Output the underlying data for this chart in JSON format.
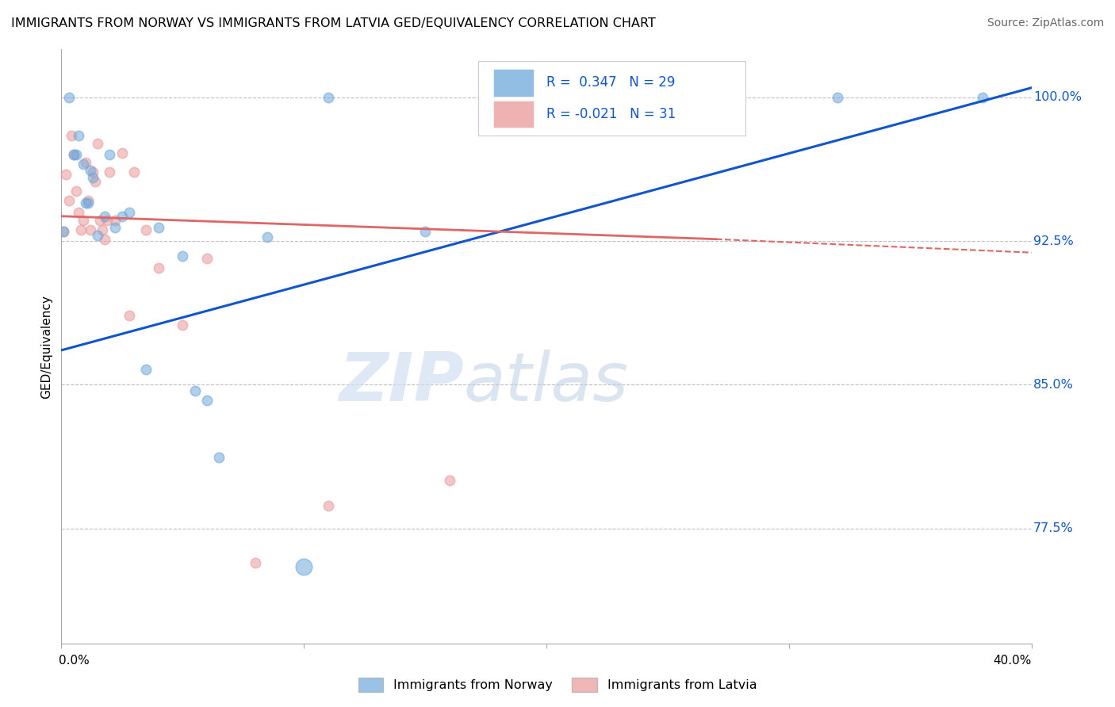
{
  "title": "IMMIGRANTS FROM NORWAY VS IMMIGRANTS FROM LATVIA GED/EQUIVALENCY CORRELATION CHART",
  "source": "Source: ZipAtlas.com",
  "ylabel": "GED/Equivalency",
  "ylabel_right_labels": [
    "100.0%",
    "92.5%",
    "85.0%",
    "77.5%"
  ],
  "ylabel_right_values": [
    1.0,
    0.925,
    0.85,
    0.775
  ],
  "xlim": [
    0.0,
    0.4
  ],
  "ylim": [
    0.715,
    1.025
  ],
  "norway_color": "#6fa8dc",
  "latvia_color": "#ea9999",
  "norway_line_color": "#1155cc",
  "latvia_line_color": "#cc4125",
  "latvia_line_solid_color": "#e06666",
  "latvia_line_dash_color": "#e06666",
  "watermark_zip": "ZIP",
  "watermark_atlas": "atlas",
  "legend_label_norway": "Immigrants from Norway",
  "legend_label_latvia": "Immigrants from Latvia",
  "norway_points_x": [
    0.001,
    0.003,
    0.005,
    0.006,
    0.007,
    0.009,
    0.01,
    0.011,
    0.012,
    0.013,
    0.015,
    0.018,
    0.02,
    0.022,
    0.025,
    0.028,
    0.035,
    0.04,
    0.05,
    0.055,
    0.06,
    0.065,
    0.085,
    0.1,
    0.11,
    0.15,
    0.32,
    0.38
  ],
  "norway_points_y": [
    0.93,
    1.0,
    0.97,
    0.97,
    0.98,
    0.965,
    0.945,
    0.945,
    0.962,
    0.958,
    0.928,
    0.938,
    0.97,
    0.932,
    0.938,
    0.94,
    0.858,
    0.932,
    0.917,
    0.847,
    0.842,
    0.812,
    0.927,
    0.755,
    1.0,
    0.93,
    1.0,
    1.0
  ],
  "norway_marker_sizes": [
    80,
    80,
    80,
    80,
    80,
    80,
    80,
    80,
    80,
    80,
    80,
    80,
    80,
    80,
    80,
    80,
    80,
    80,
    80,
    80,
    80,
    80,
    80,
    220,
    80,
    80,
    80,
    80
  ],
  "latvia_points_x": [
    0.001,
    0.002,
    0.003,
    0.004,
    0.005,
    0.006,
    0.007,
    0.008,
    0.009,
    0.01,
    0.011,
    0.012,
    0.013,
    0.014,
    0.015,
    0.016,
    0.017,
    0.018,
    0.019,
    0.02,
    0.022,
    0.025,
    0.028,
    0.03,
    0.035,
    0.04,
    0.05,
    0.06,
    0.08,
    0.11,
    0.16
  ],
  "latvia_points_y": [
    0.93,
    0.96,
    0.946,
    0.98,
    0.97,
    0.951,
    0.94,
    0.931,
    0.936,
    0.966,
    0.946,
    0.931,
    0.961,
    0.956,
    0.976,
    0.936,
    0.931,
    0.926,
    0.936,
    0.961,
    0.936,
    0.971,
    0.886,
    0.961,
    0.931,
    0.911,
    0.881,
    0.916,
    0.757,
    0.787,
    0.8
  ],
  "latvia_marker_sizes": [
    80,
    80,
    80,
    80,
    80,
    80,
    80,
    80,
    80,
    80,
    80,
    80,
    80,
    80,
    80,
    80,
    80,
    80,
    80,
    80,
    80,
    80,
    80,
    80,
    80,
    80,
    80,
    80,
    80,
    80,
    80
  ],
  "norway_line_x0": 0.0,
  "norway_line_y0": 0.868,
  "norway_line_x1": 0.4,
  "norway_line_y1": 1.005,
  "latvia_line_x0": 0.0,
  "latvia_line_y0": 0.938,
  "latvia_line_solid_x1": 0.27,
  "latvia_line_solid_y1": 0.926,
  "latvia_line_dash_x1": 0.4,
  "latvia_line_dash_y1": 0.919
}
